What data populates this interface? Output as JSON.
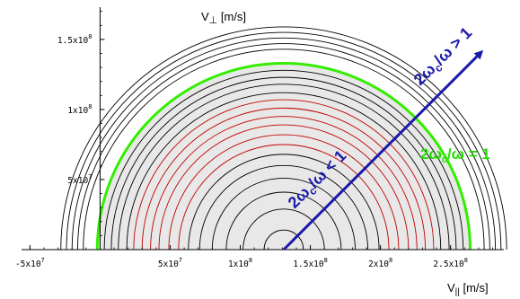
{
  "chart_data": {
    "type": "contour",
    "xlabel": "V",
    "xlabel_sub": "||",
    "xlabel_unit": " [m/s]",
    "ylabel": "V",
    "ylabel_sub": "⊥",
    "ylabel_unit": " [m/s]",
    "xlim": [
      -56000000,
      288000000
    ],
    "ylim": [
      0,
      173000000
    ],
    "x_ticks": [
      {
        "value": -50000000,
        "mant": "-5x10",
        "exp": "7"
      },
      {
        "value": 50000000,
        "mant": "5x10",
        "exp": "7"
      },
      {
        "value": 100000000,
        "mant": "1x10",
        "exp": "8"
      },
      {
        "value": 150000000,
        "mant": "1.5x10",
        "exp": "8"
      },
      {
        "value": 200000000,
        "mant": "2x10",
        "exp": "8"
      },
      {
        "value": 250000000,
        "mant": "2.5x10",
        "exp": "8"
      }
    ],
    "y_ticks": [
      {
        "value": 50000000,
        "mant": "5x10",
        "exp": "7"
      },
      {
        "value": 100000000,
        "mant": "1x10",
        "exp": "8"
      },
      {
        "value": 150000000,
        "mant": "1.5x10",
        "exp": "8"
      }
    ],
    "minor_x_step": 10000000,
    "minor_y_step": 10000000,
    "shaded_region": {
      "center_x": 131000000,
      "radius": 133000000,
      "color": "#e8e8e8"
    },
    "contours": [
      {
        "center_x": 131000000,
        "radius": 14000000,
        "color": "#000000"
      },
      {
        "center_x": 131000000,
        "radius": 29000000,
        "color": "#000000"
      },
      {
        "center_x": 131000000,
        "radius": 41000000,
        "color": "#000000"
      },
      {
        "center_x": 131000000,
        "radius": 51000000,
        "color": "#000000"
      },
      {
        "center_x": 131000000,
        "radius": 60000000,
        "color": "#000000"
      },
      {
        "center_x": 131000000,
        "radius": 68000000,
        "color": "#000000"
      },
      {
        "center_x": 131000000,
        "radius": 75000000,
        "color": "#c00000"
      },
      {
        "center_x": 131000000,
        "radius": 82000000,
        "color": "#c00000"
      },
      {
        "center_x": 131000000,
        "radius": 89000000,
        "color": "#c00000"
      },
      {
        "center_x": 131000000,
        "radius": 95000000,
        "color": "#c00000"
      },
      {
        "center_x": 131000000,
        "radius": 101000000,
        "color": "#c00000"
      },
      {
        "center_x": 131000000,
        "radius": 107000000,
        "color": "#c00000"
      },
      {
        "center_x": 131000000,
        "radius": 112000000,
        "color": "#000000"
      },
      {
        "center_x": 131000000,
        "radius": 118000000,
        "color": "#000000"
      },
      {
        "center_x": 131000000,
        "radius": 123000000,
        "color": "#000000"
      },
      {
        "center_x": 131000000,
        "radius": 128000000,
        "color": "#000000"
      },
      {
        "center_x": 131000000,
        "radius": 133000000,
        "color": "#33ee00",
        "width": 3
      },
      {
        "center_x": 131000000,
        "radius": 143000000,
        "color": "#000000"
      },
      {
        "center_x": 131000000,
        "radius": 147000000,
        "color": "#000000"
      },
      {
        "center_x": 131000000,
        "radius": 151000000,
        "color": "#000000"
      },
      {
        "center_x": 131000000,
        "radius": 155000000,
        "color": "#000000"
      },
      {
        "center_x": 131000000,
        "radius": 159000000,
        "color": "#000000"
      }
    ],
    "arrow": {
      "from": [
        131000000,
        0
      ],
      "to": [
        272000000,
        141000000
      ],
      "color": "#1a1aa8"
    },
    "annotations": {
      "below": {
        "pre": "2ω",
        "sub": "c",
        "post": "/ω < 1"
      },
      "above": {
        "pre": "2ω",
        "sub": "c",
        "post": "/ω > 1"
      },
      "equal": {
        "pre": "2ω",
        "sub": "c",
        "post": "/ω = 1"
      }
    },
    "colors": {
      "shade": "#e8e8e8",
      "resonance": "#33ee00",
      "inner_contours": "#c00000",
      "arrow": "#1a1aa8"
    }
  }
}
